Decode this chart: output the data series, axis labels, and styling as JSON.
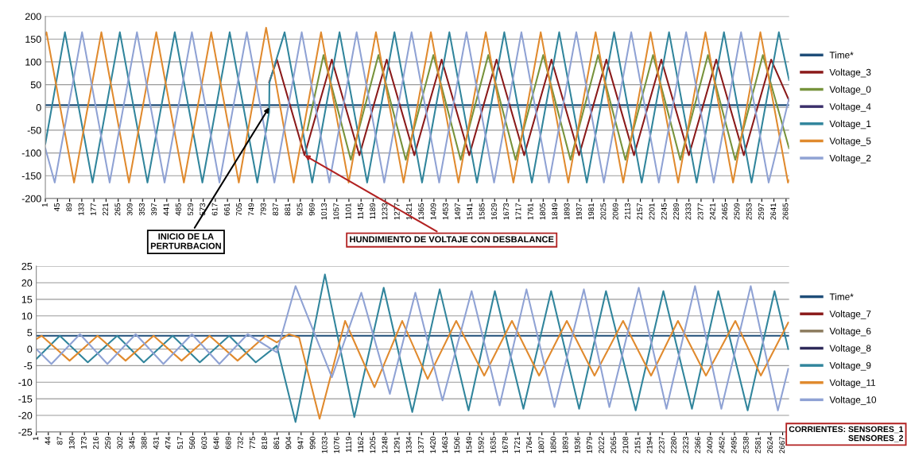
{
  "chart_data": [
    {
      "type": "line",
      "xlim": [
        1,
        2696
      ],
      "ylim": [
        -200,
        200
      ],
      "yticks": [
        -200,
        -150,
        -100,
        -50,
        0,
        50,
        100,
        150,
        200
      ],
      "xticks": [
        1,
        45,
        89,
        133,
        177,
        221,
        265,
        309,
        353,
        397,
        441,
        485,
        529,
        573,
        617,
        661,
        705,
        749,
        793,
        837,
        881,
        925,
        969,
        1013,
        1057,
        1101,
        1145,
        1189,
        1233,
        1277,
        1321,
        1365,
        1409,
        1453,
        1497,
        1541,
        1585,
        1629,
        1673,
        1717,
        1761,
        1805,
        1849,
        1893,
        1937,
        1981,
        2025,
        2069,
        2113,
        2157,
        2201,
        2245,
        2289,
        2333,
        2377,
        2421,
        2465,
        2509,
        2553,
        2597,
        2641,
        2685
      ],
      "grid": "y",
      "legend": "right",
      "marker": "none",
      "line_style": "solid",
      "annotations": [
        {
          "text": "INICIO DE LA\nPERTURBACION",
          "x": 812,
          "y": 0
        },
        {
          "text": "HUNDIMIENTO DE VOLTAJE CON DESBALANCE",
          "x": 940,
          "y": -105
        }
      ],
      "series": [
        {
          "name": "Time*",
          "color": "#1f4e79",
          "x": [
            1,
            2696
          ],
          "values": [
            5,
            5
          ]
        },
        {
          "name": "Voltage_3",
          "color": "#8b1a1a",
          "x": [
            812,
            840,
            940,
            1039,
            1139,
            1238,
            1338,
            1437,
            1537,
            1636,
            1736,
            1835,
            1935,
            2034,
            2134,
            2233,
            2333,
            2432,
            2532,
            2631,
            2696
          ],
          "values": [
            55,
            105,
            -105,
            105,
            -105,
            105,
            -105,
            105,
            -105,
            105,
            -105,
            105,
            -105,
            105,
            -105,
            105,
            -105,
            105,
            -105,
            105,
            15
          ]
        },
        {
          "name": "Voltage_0",
          "color": "#77933c",
          "x": [
            950,
            1009,
            1108,
            1208,
            1307,
            1407,
            1506,
            1606,
            1705,
            1805,
            1904,
            2004,
            2103,
            2203,
            2302,
            2402,
            2501,
            2601,
            2696
          ],
          "values": [
            -50,
            115,
            -115,
            115,
            -115,
            115,
            -115,
            115,
            -115,
            115,
            -115,
            115,
            -115,
            115,
            -115,
            115,
            -115,
            115,
            -90
          ]
        },
        {
          "name": "Voltage_4",
          "color": "#3b2f6b"
        },
        {
          "name": "Voltage_1",
          "color": "#31859c",
          "x": [
            1,
            72,
            172,
            271,
            371,
            470,
            570,
            669,
            769,
            812,
            813,
            868,
            968,
            1067,
            1167,
            1266,
            1366,
            1465,
            1565,
            1664,
            1764,
            1863,
            1963,
            2062,
            2162,
            2261,
            2361,
            2460,
            2560,
            2659,
            2696
          ],
          "values": [
            -80,
            165,
            -165,
            165,
            -165,
            165,
            -165,
            165,
            -165,
            -10,
            55,
            165,
            -165,
            165,
            -165,
            165,
            -165,
            165,
            -165,
            165,
            -165,
            165,
            -165,
            165,
            -165,
            165,
            -165,
            165,
            -165,
            165,
            60
          ]
        },
        {
          "name": "Voltage_5",
          "color": "#e08a2e",
          "x": [
            1,
            5,
            105,
            204,
            304,
            403,
            503,
            602,
            702,
            801,
            901,
            1000,
            1100,
            1199,
            1299,
            1398,
            1498,
            1597,
            1697,
            1796,
            1896,
            1995,
            2095,
            2194,
            2294,
            2393,
            2493,
            2592,
            2692,
            2696
          ],
          "values": [
            160,
            165,
            -165,
            165,
            -165,
            165,
            -165,
            165,
            -165,
            175,
            -165,
            165,
            -165,
            165,
            -165,
            165,
            -165,
            165,
            -165,
            165,
            -165,
            165,
            -165,
            165,
            -165,
            165,
            -165,
            165,
            -165,
            -160
          ]
        },
        {
          "name": "Voltage_2",
          "color": "#8fa2d4",
          "x": [
            1,
            35,
            134,
            234,
            333,
            433,
            532,
            632,
            731,
            831,
            930,
            1030,
            1129,
            1229,
            1328,
            1428,
            1527,
            1627,
            1726,
            1826,
            1925,
            2025,
            2124,
            2224,
            2323,
            2423,
            2522,
            2622,
            2696
          ],
          "values": [
            -90,
            -165,
            165,
            -165,
            165,
            -165,
            165,
            -165,
            165,
            -165,
            165,
            -165,
            165,
            -165,
            165,
            -165,
            165,
            -165,
            165,
            -165,
            165,
            -165,
            165,
            -165,
            165,
            -165,
            165,
            -165,
            20
          ]
        }
      ]
    },
    {
      "type": "line",
      "xlim": [
        1,
        2690
      ],
      "ylim": [
        -25,
        25
      ],
      "yticks": [
        -25,
        -20,
        -15,
        -10,
        -5,
        0,
        5,
        10,
        15,
        20,
        25
      ],
      "xticks": [
        1,
        44,
        87,
        130,
        173,
        216,
        259,
        302,
        345,
        388,
        431,
        474,
        517,
        560,
        603,
        646,
        689,
        732,
        775,
        818,
        861,
        904,
        947,
        990,
        1033,
        1076,
        1119,
        1162,
        1205,
        1248,
        1291,
        1334,
        1377,
        1420,
        1463,
        1506,
        1549,
        1592,
        1635,
        1678,
        1721,
        1764,
        1807,
        1850,
        1893,
        1936,
        1979,
        2022,
        2065,
        2108,
        2151,
        2194,
        2237,
        2280,
        2323,
        2366,
        2409,
        2452,
        2495,
        2538,
        2581,
        2624,
        2667
      ],
      "grid": "y",
      "legend": "right",
      "marker": "none",
      "line_style": "solid",
      "annotations": [
        "CORRIENTES: SENSORES_1\nSENSORES_2"
      ],
      "series": [
        {
          "name": "Time*",
          "color": "#1f4e79",
          "x": [
            1,
            2690
          ],
          "values": [
            4,
            4
          ]
        },
        {
          "name": "Voltage_7",
          "color": "#8b1a1a"
        },
        {
          "name": "Voltage_6",
          "color": "#8c7b5e"
        },
        {
          "name": "Voltage_8",
          "color": "#2e2a5a"
        },
        {
          "name": "Voltage_9",
          "color": "#31859c",
          "x": [
            1,
            85,
            185,
            290,
            385,
            488,
            585,
            690,
            785,
            860,
            927,
            1032,
            1137,
            1242,
            1344,
            1442,
            1545,
            1639,
            1741,
            1840,
            1940,
            2036,
            2142,
            2241,
            2343,
            2437,
            2542,
            2638,
            2687
          ],
          "values": [
            -3,
            4,
            -4,
            4,
            -4,
            4,
            -4,
            4,
            -4,
            1,
            -22,
            22.5,
            -20.5,
            18.5,
            -19,
            18,
            -18.5,
            17.5,
            -18,
            17.5,
            -18,
            17.5,
            -18.5,
            17.5,
            -18,
            17.5,
            -18.5,
            17.5,
            0
          ]
        },
        {
          "name": "Voltage_11",
          "color": "#e08a2e",
          "x": [
            1,
            20,
            120,
            220,
            320,
            420,
            520,
            620,
            720,
            820,
            860,
            903,
            940,
            1013,
            1104,
            1209,
            1308,
            1399,
            1501,
            1601,
            1700,
            1797,
            1896,
            1995,
            2097,
            2197,
            2293,
            2393,
            2498,
            2589,
            2687
          ],
          "values": [
            3,
            4,
            -3.5,
            4,
            -3.5,
            4,
            -3.5,
            4,
            -3.5,
            4,
            2,
            4.5,
            3.5,
            -21,
            8.5,
            -11.5,
            8.5,
            -9,
            8.5,
            -8,
            8.5,
            -8,
            8.5,
            -8,
            8.5,
            -8,
            8.5,
            -8,
            8.5,
            -8,
            8
          ]
        },
        {
          "name": "Voltage_10",
          "color": "#8fa2d4",
          "x": [
            1,
            55,
            157,
            255,
            356,
            455,
            557,
            655,
            756,
            860,
            927,
            1057,
            1162,
            1264,
            1355,
            1452,
            1556,
            1656,
            1752,
            1852,
            1957,
            2048,
            2153,
            2252,
            2354,
            2448,
            2553,
            2650,
            2687
          ],
          "values": [
            0,
            -4.5,
            4.5,
            -4.5,
            4.5,
            -4.5,
            4.5,
            -4.5,
            4.5,
            -1,
            19,
            -8.5,
            17,
            -13.5,
            17,
            -15.5,
            17.5,
            -17,
            18,
            -17.5,
            18,
            -17.5,
            18.5,
            -18,
            19,
            -18,
            19,
            -18.5,
            -6
          ]
        }
      ]
    }
  ]
}
